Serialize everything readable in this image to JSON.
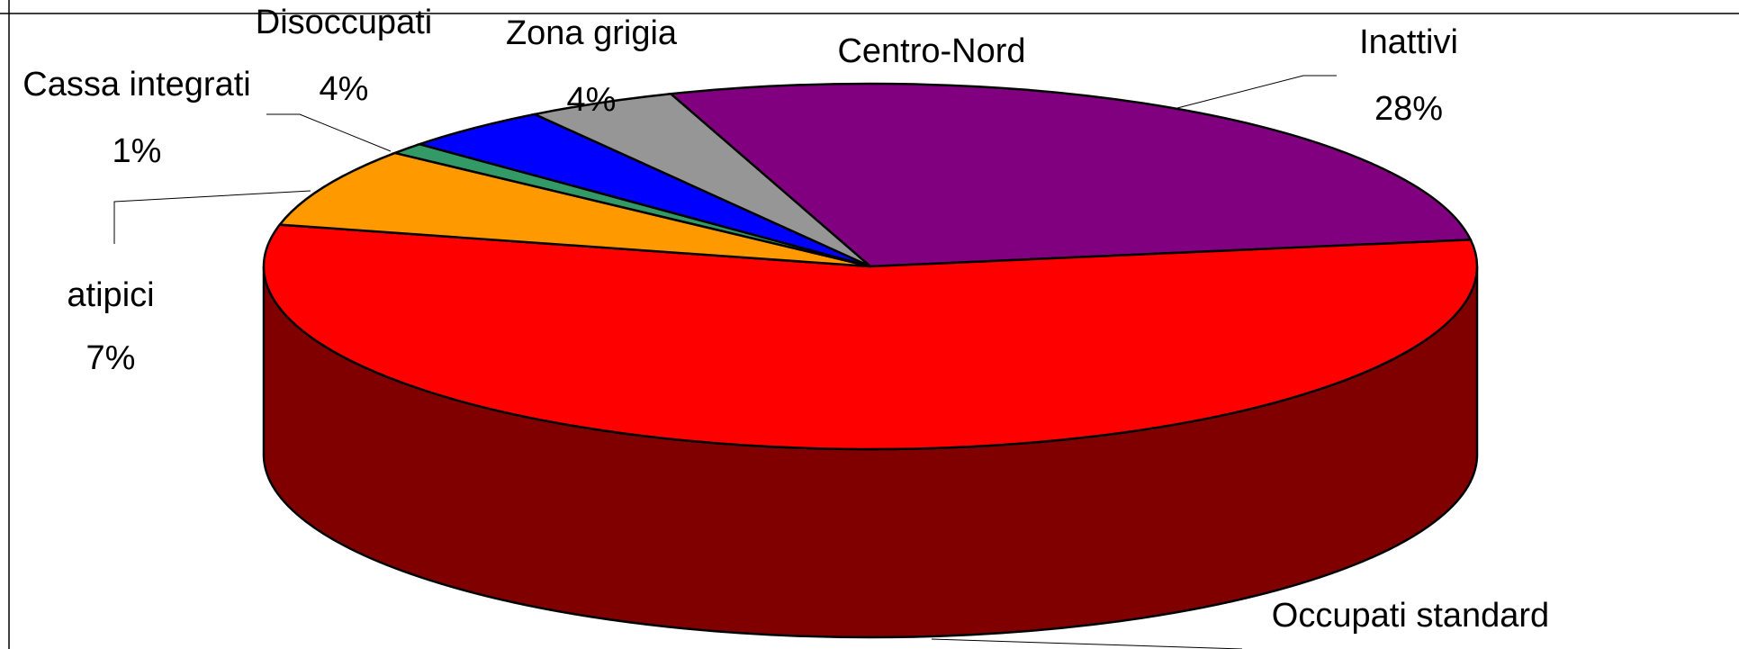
{
  "chart_data": {
    "type": "pie3d",
    "title": "Centro-Nord",
    "categories": [
      "Inattivi",
      "Occupati standard",
      "atipici",
      "Cassa integrati",
      "Disoccupati",
      "Zona grigia"
    ],
    "values": [
      28,
      56,
      7,
      1,
      4,
      4
    ],
    "value_labels": [
      "28%",
      null,
      "7%",
      "1%",
      "4%",
      "4%"
    ],
    "colors": [
      "#800080",
      "#ff0000",
      "#ff9900",
      "#339966",
      "#0000ff",
      "#969696"
    ]
  }
}
